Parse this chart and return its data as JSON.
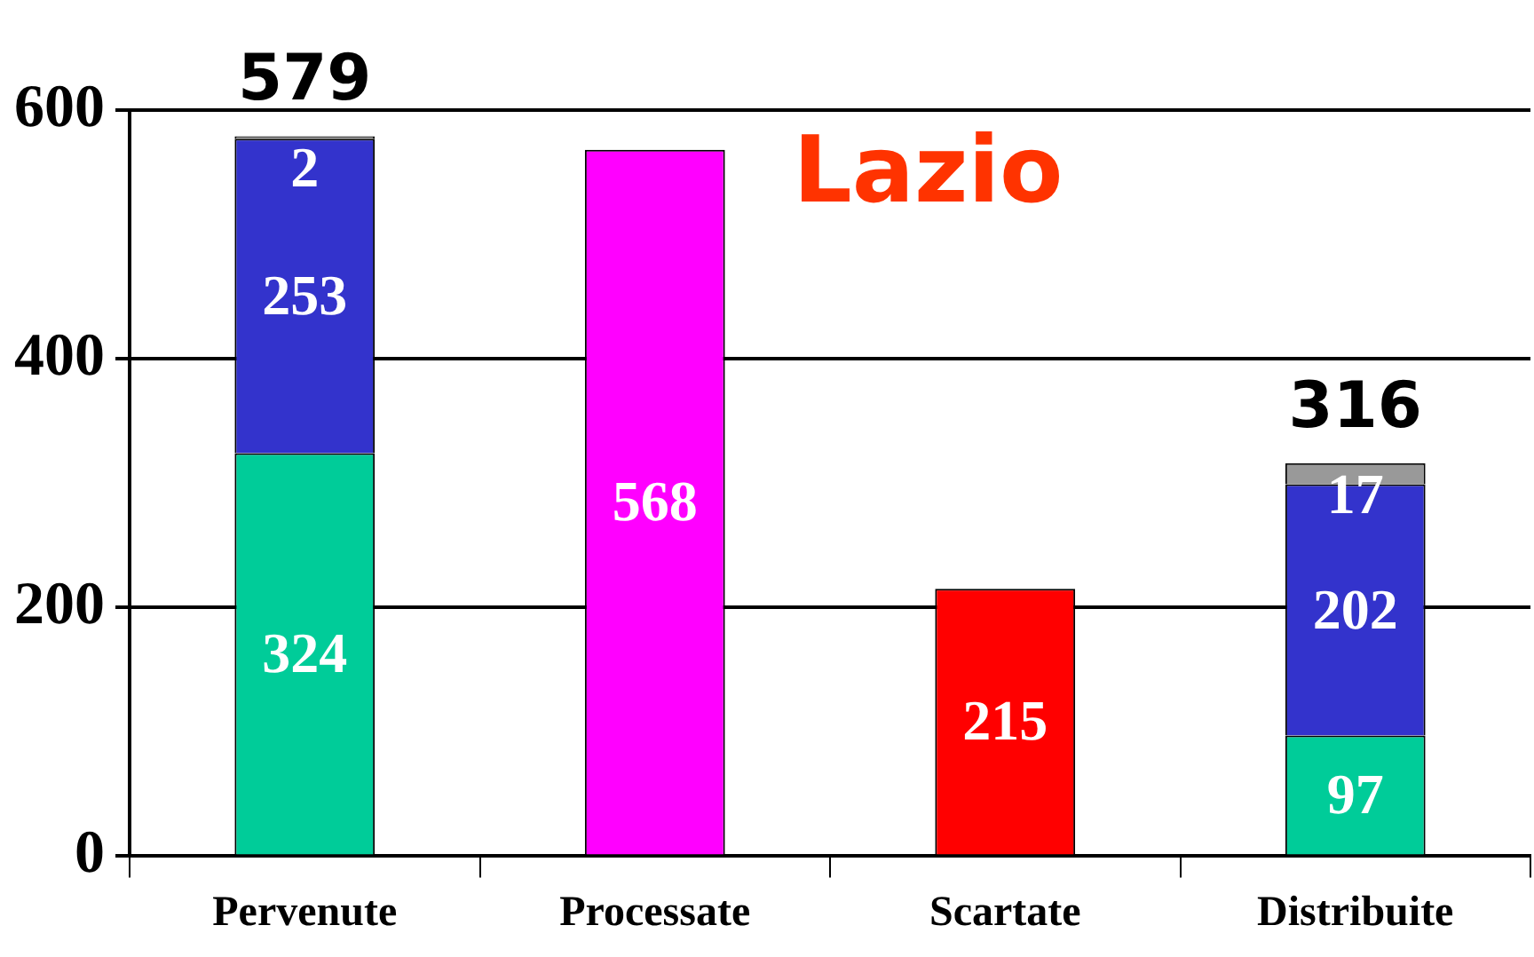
{
  "chart_data": {
    "type": "bar",
    "title": "Lazio",
    "stacked": true,
    "categories": [
      "Pervenute",
      "Processate",
      "Scartate",
      "Distribuite"
    ],
    "series": [
      {
        "color": "#00cc99",
        "values": [
          324,
          null,
          null,
          97
        ]
      },
      {
        "color": "#3333cc",
        "values": [
          253,
          null,
          null,
          202
        ]
      },
      {
        "color": "#999999",
        "values": [
          2,
          null,
          null,
          17
        ]
      },
      {
        "color": "#ff00ff",
        "values": [
          null,
          568,
          null,
          null
        ]
      },
      {
        "color": "#ff0000",
        "values": [
          null,
          null,
          215,
          null
        ]
      }
    ],
    "totals": [
      "579",
      null,
      null,
      "316"
    ],
    "data_labels": true,
    "ylim": [
      0,
      600
    ],
    "yticks": [
      0,
      200,
      400,
      600
    ],
    "grid": "y",
    "legend": false
  }
}
